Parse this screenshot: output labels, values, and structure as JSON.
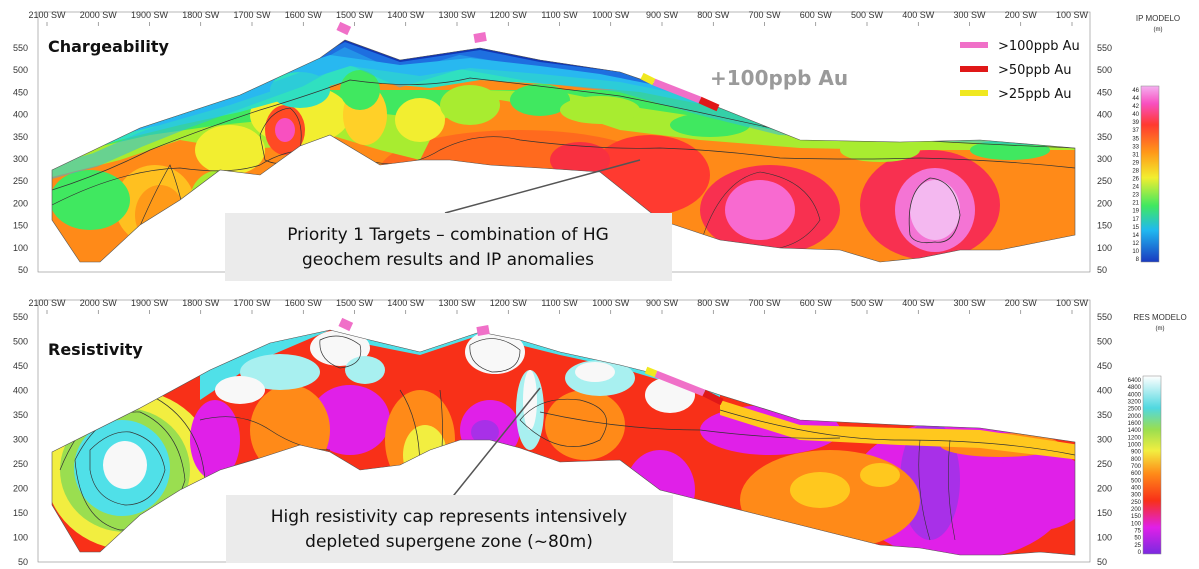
{
  "chart_data": [
    {
      "type": "heatmap",
      "title": "Chargeability",
      "x_ticks": [
        "2100 SW",
        "2000 SW",
        "1900 SW",
        "1800 SW",
        "1700 SW",
        "1600 SW",
        "1500 SW",
        "1400 SW",
        "1300 SW",
        "1200 SW",
        "1100 SW",
        "1000 SW",
        "900 SW",
        "800 SW",
        "700 SW",
        "600 SW",
        "500 SW",
        "400 SW",
        "300 SW",
        "200 SW",
        "100 SW"
      ],
      "y_ticks": [
        "550",
        "500",
        "450",
        "400",
        "350",
        "300",
        "250",
        "200",
        "150",
        "100",
        "50"
      ],
      "ylim": [
        50,
        550
      ],
      "colorbar": {
        "title": "IP MODELO",
        "unit": "(m)",
        "ticks": [
          "46",
          "44",
          "42",
          "40",
          "39",
          "37",
          "35",
          "33",
          "31",
          "29",
          "28",
          "26",
          "24",
          "23",
          "21",
          "19",
          "17",
          "15",
          "14",
          "12",
          "10",
          "8"
        ]
      },
      "legend": [
        {
          "label": ">100ppb Au",
          "color": "#f070c8"
        },
        {
          "label": ">50ppb Au",
          "color": "#e01818"
        },
        {
          "label": ">25ppb Au",
          "color": "#f0e820"
        }
      ],
      "annotations": [
        "+100ppb Au",
        "Priority 1 Targets – combination of HG geochem results and IP anomalies"
      ]
    },
    {
      "type": "heatmap",
      "title": "Resistivity",
      "x_ticks": [
        "2100 SW",
        "2000 SW",
        "1900 SW",
        "1800 SW",
        "1700 SW",
        "1600 SW",
        "1500 SW",
        "1400 SW",
        "1300 SW",
        "1200 SW",
        "1100 SW",
        "1000 SW",
        "900 SW",
        "800 SW",
        "700 SW",
        "600 SW",
        "500 SW",
        "400 SW",
        "300 SW",
        "200 SW",
        "100 SW"
      ],
      "y_ticks": [
        "550",
        "500",
        "450",
        "400",
        "350",
        "300",
        "250",
        "200",
        "150",
        "100",
        "50"
      ],
      "ylim": [
        50,
        550
      ],
      "colorbar": {
        "title": "RES MODELO",
        "unit": "(m)",
        "ticks": [
          "6400",
          "4800",
          "4000",
          "3200",
          "2500",
          "2000",
          "1600",
          "1400",
          "1200",
          "1000",
          "900",
          "800",
          "700",
          "600",
          "500",
          "400",
          "300",
          "250",
          "200",
          "150",
          "100",
          "75",
          "50",
          "25",
          "0"
        ]
      },
      "annotations": [
        "High resistivity cap represents intensively depleted supergene zone (~80m)"
      ]
    }
  ],
  "callouts": {
    "ip_line1": "Priority 1 Targets – combination of HG",
    "ip_line2": "geochem results and IP anomalies",
    "res_line1": "High resistivity cap represents intensively",
    "res_line2": "depleted supergene zone (~80m)",
    "big_label": "+100ppb Au"
  },
  "colors": {
    "ip_palette": [
      "#1030b0",
      "#1e6fe0",
      "#28b8f0",
      "#30e0c0",
      "#40e860",
      "#a8ec30",
      "#f2ee30",
      "#ffc020",
      "#ff8a18",
      "#ff4a24",
      "#f81e60",
      "#f850c0",
      "#f0a0ec"
    ],
    "res_palette": [
      "#f8f8f8",
      "#a8f0f0",
      "#50e0e8",
      "#40c8a0",
      "#9ade50",
      "#e8ee40",
      "#ffc81e",
      "#ff8a18",
      "#f83018",
      "#f040a0",
      "#e020e8",
      "#a830e8",
      "#6a2ae0"
    ]
  }
}
